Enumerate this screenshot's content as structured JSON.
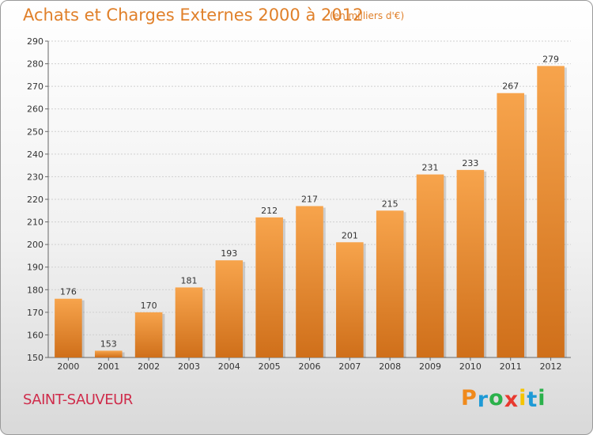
{
  "chart_data": {
    "type": "bar",
    "title": "Achats et Charges Externes 2000 à 2012",
    "unit_note": "(en milliers d'€)",
    "categories": [
      "2000",
      "2001",
      "2002",
      "2003",
      "2004",
      "2005",
      "2006",
      "2007",
      "2008",
      "2009",
      "2010",
      "2011",
      "2012"
    ],
    "values": [
      176,
      153,
      170,
      181,
      193,
      212,
      217,
      201,
      215,
      231,
      233,
      267,
      279
    ],
    "ylim": [
      150,
      290
    ],
    "yticks": [
      150,
      160,
      170,
      180,
      190,
      200,
      210,
      220,
      230,
      240,
      250,
      260,
      270,
      280,
      290
    ],
    "grid": true,
    "bar_color_top": "#f7a44c",
    "bar_color_bottom": "#cf6f1a"
  },
  "commune": "SAINT-SAUVEUR",
  "logo": {
    "letters": [
      "P",
      "r",
      "o",
      "x",
      "i",
      "t",
      "i"
    ],
    "colors": [
      "#f08a1c",
      "#1e9ad6",
      "#2bb14b",
      "#e8392f",
      "#f5c400",
      "#1e9ad6",
      "#2bb14b"
    ]
  }
}
